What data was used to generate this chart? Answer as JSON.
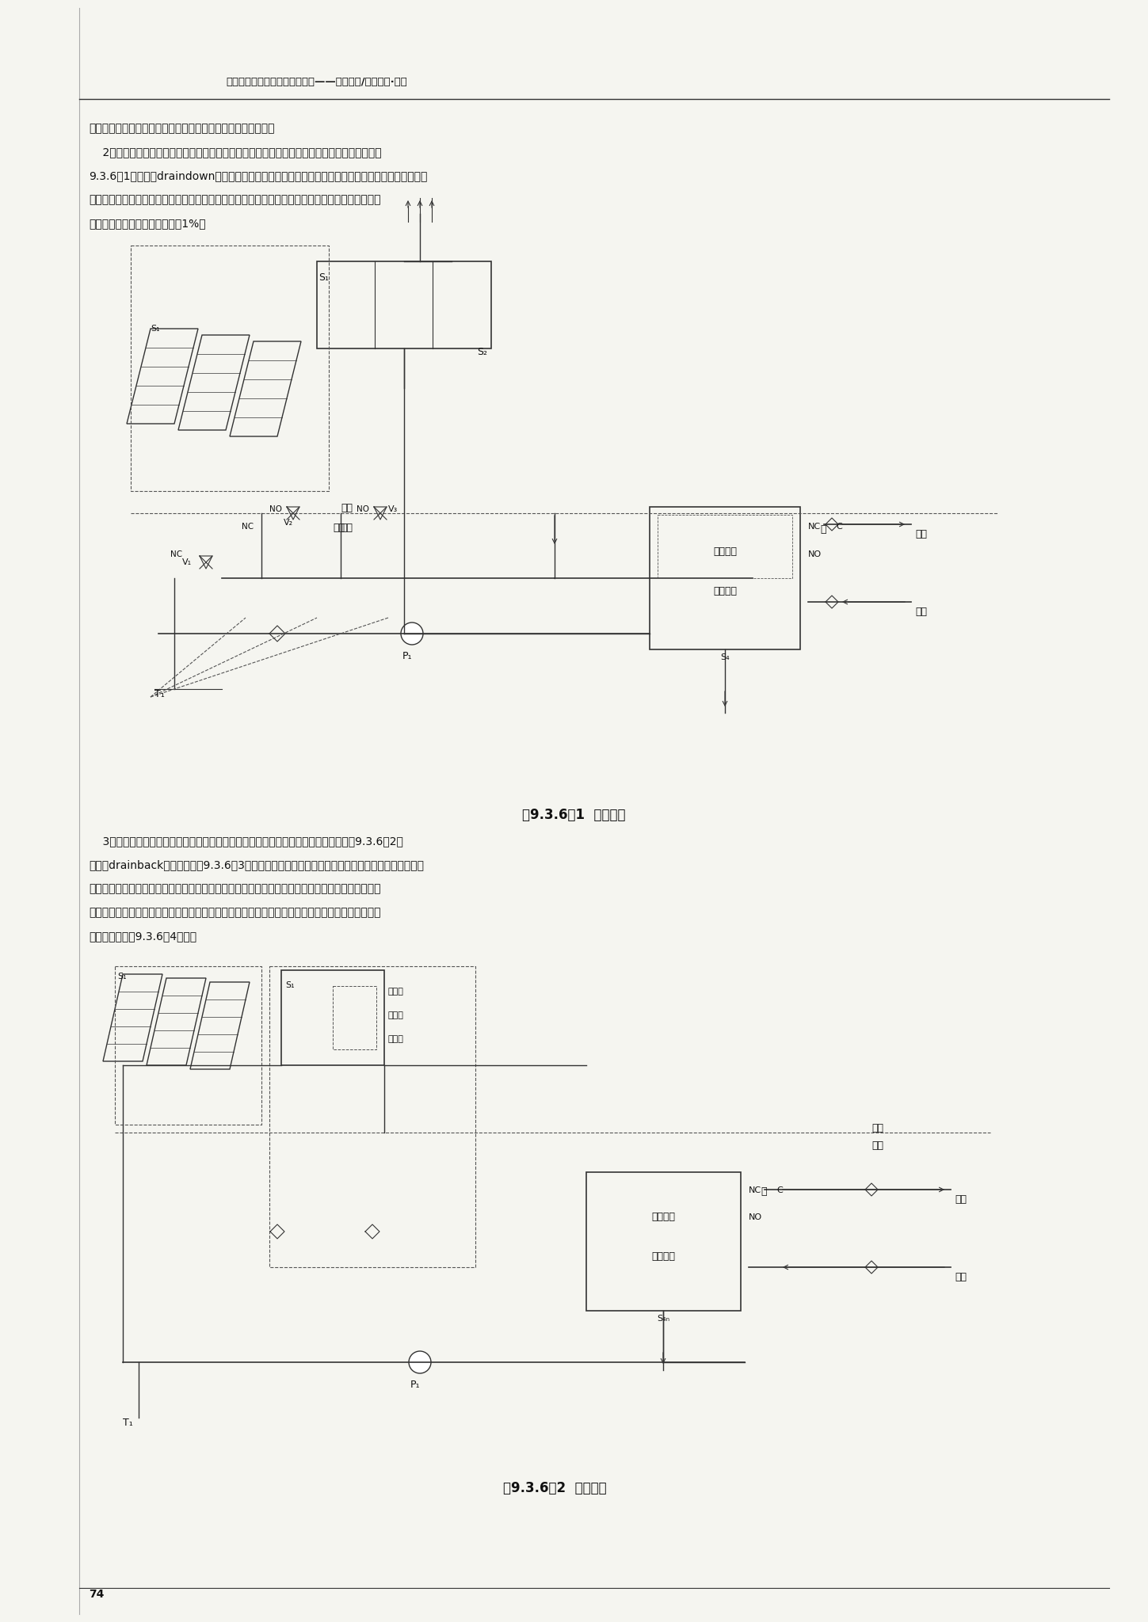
{
  "page_bg": "#f5f5f0",
  "header_text": "全国民用建筑工程设计技术措施——节能专篇/暖通空调·动力",
  "footer_page_num": "74",
  "para1_text": "冻控制运行时从集热系统排回的水；防冻控制方式为温度控制。",
  "para2_lines": [
    "    2．直接式太阳能集热系统宜在环境温度不是很低，防冻要求不很严格的地区使用。宜采用如图",
    "9.3.6－1的排空（draindown）系统。当可能发生冻结或停电时，防冻保护控制系统自动通过多个阀门",
    "的启闭将太阳能集热系统中的水排空，并将太阳能集热系统与市政供水管网断开。使用排空系统的集",
    "热器和管路的安装坡度最小应在1%。"
  ],
  "fig1_caption": "图9.3.6－1  排空系统",
  "fig2_caption": "图9.3.6－2  排回系统",
  "para3_lines": [
    "    3．间接式太阳能集热系统宜在环境温度较低，防冻要求严格的地区使用，宜采用如图9.3.6－2的",
    "排回（drainback）系统或如图9.3.6－3所示在太阳能集热系统中充注防冻液作为传热工质的防冻液系",
    "统。防冻液通常带有腐蚀性，系统应采用耐腐蚀双层壁热交换器。防冻液的组成成分对其冰点有关键",
    "性影响，集热系统不应设自动补水，以免破坏防冻液成分。大型系统中，使用防冻液的集热系统应设",
    "旁通管路，如图9.3.6－4所示。"
  ],
  "line_color": "#333333",
  "dash_color": "#555555",
  "text_color": "#111111"
}
